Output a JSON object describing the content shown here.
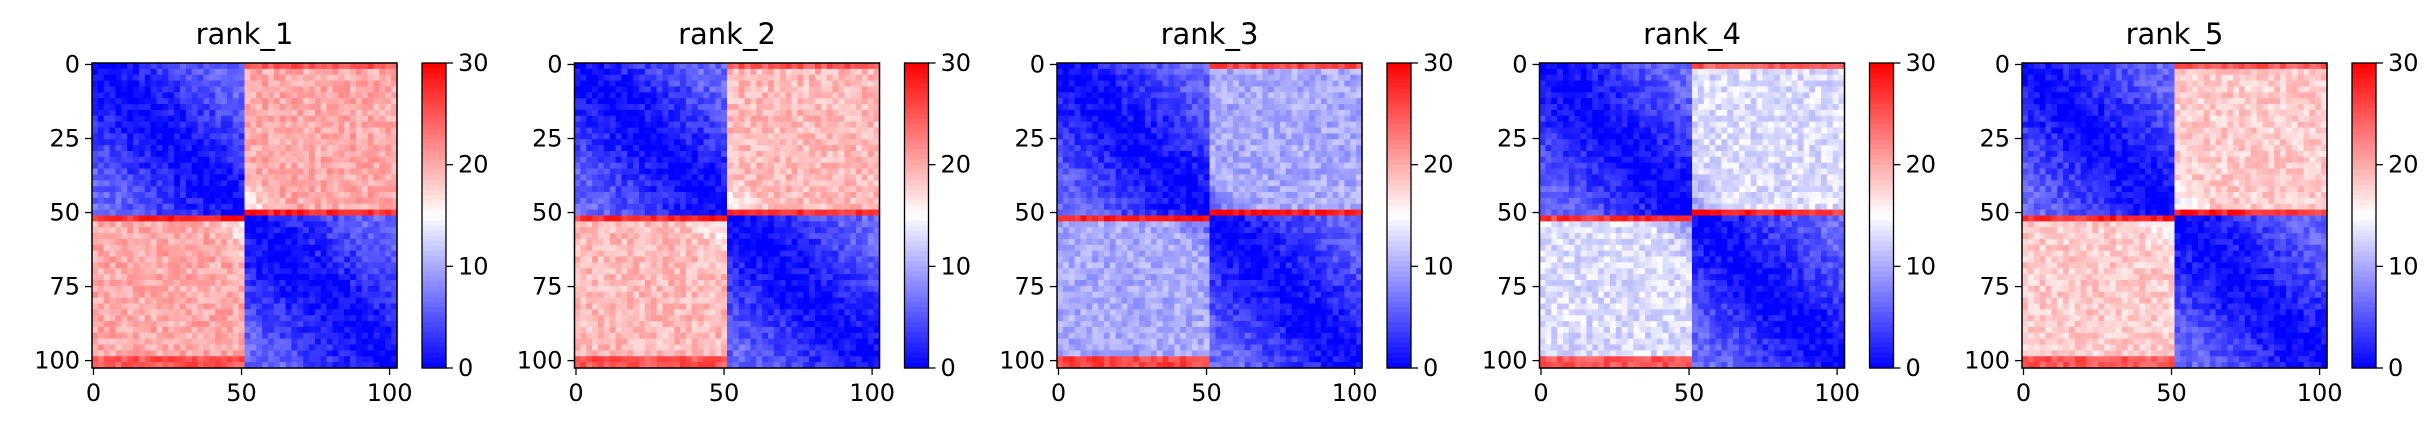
{
  "chart_data": {
    "type": "heatmap",
    "matrix_size": 103,
    "colormap": "bwr",
    "colormap_stops": [
      "#0000ff",
      "#ffffff",
      "#ff0000"
    ],
    "colorbar": {
      "min": 0,
      "max": 30,
      "ticks": [
        0,
        10,
        20,
        30
      ]
    },
    "x_ticks": [
      0,
      50,
      100
    ],
    "y_ticks": [
      0,
      25,
      50,
      75,
      100
    ],
    "panels": [
      {
        "title": "rank_1",
        "off_diagonal_level": 20,
        "red_stripe": 29
      },
      {
        "title": "rank_2",
        "off_diagonal_level": 19,
        "red_stripe": 29
      },
      {
        "title": "rank_3",
        "off_diagonal_level": 10,
        "red_stripe": 30
      },
      {
        "title": "rank_4",
        "off_diagonal_level": 13,
        "red_stripe": 29
      },
      {
        "title": "rank_5",
        "off_diagonal_level": 18,
        "red_stripe": 29
      }
    ]
  }
}
